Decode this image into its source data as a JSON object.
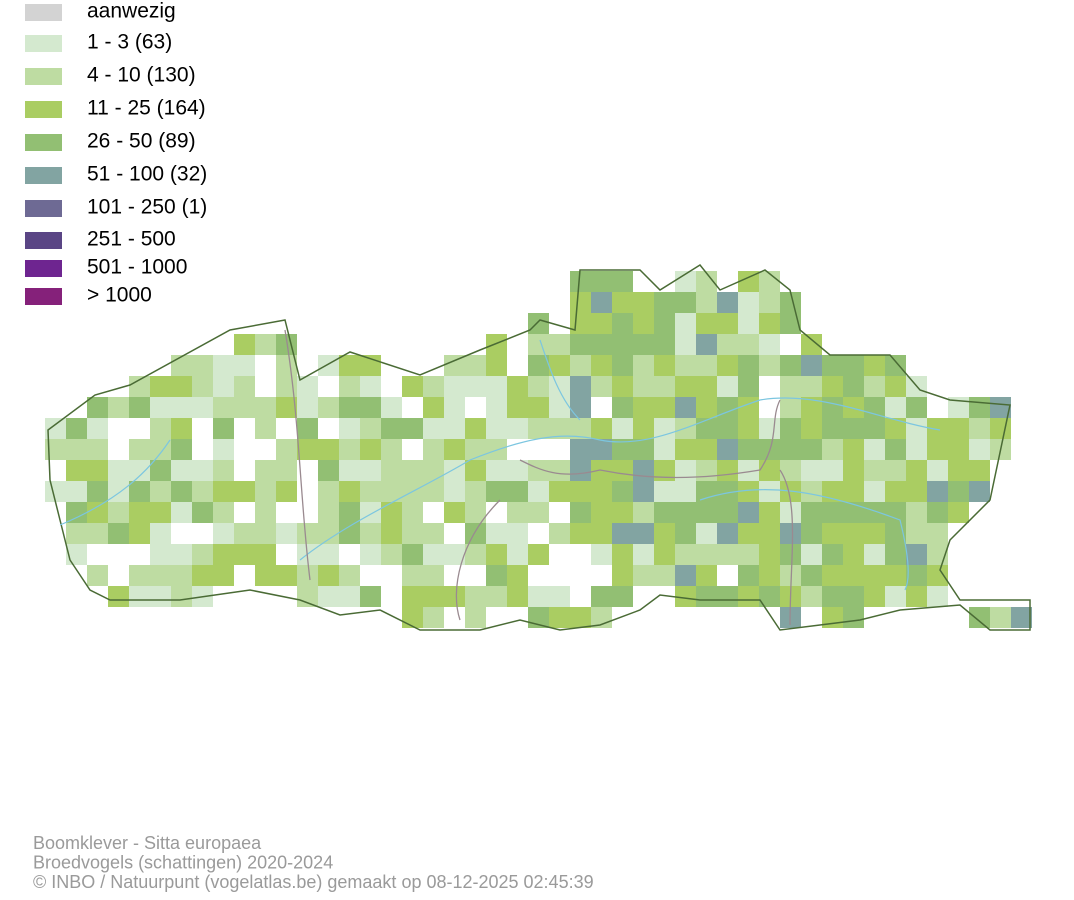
{
  "legend": [
    {
      "label": "aanwezig",
      "color": "#d3d3d3"
    },
    {
      "label": "1 - 3 (63)",
      "color": "#d4e9cf"
    },
    {
      "label": "4 - 10 (130)",
      "color": "#bedca2"
    },
    {
      "label": "11 - 25 (164)",
      "color": "#aacd62"
    },
    {
      "label": "26 - 50 (89)",
      "color": "#92bf73"
    },
    {
      "label": "51 - 100 (32)",
      "color": "#82a4a2"
    },
    {
      "label": "101 - 250 (1)",
      "color": "#6e6a94"
    },
    {
      "label": "251 - 500",
      "color": "#5a4585"
    },
    {
      "label": "501 - 1000",
      "color": "#6e2590"
    },
    {
      "label": "> 1000",
      "color": "#85217a"
    }
  ],
  "footer": [
    "Boomklever - Sitta europaea",
    "Broedvogels (schattingen) 2020-2024",
    "© INBO / Natuurpunt (vogelatlas.be) gemaakt op 08-12-2025 02:45:39"
  ]
}
